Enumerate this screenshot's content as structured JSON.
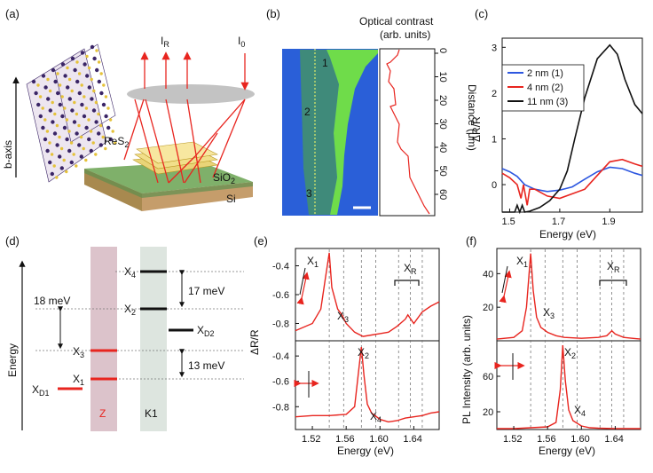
{
  "panel_labels": {
    "a": "(a)",
    "b": "(b)",
    "c": "(c)",
    "d": "(d)",
    "e": "(e)",
    "f": "(f)"
  },
  "panel_a": {
    "b_axis": "b-axis",
    "i_r_main": "I",
    "i_r_sub": "R",
    "i_0_main": "I",
    "i_0_sub": "0",
    "res2_main": "ReS",
    "res2_sub": "2",
    "sio2_main": "SiO",
    "sio2_sub": "2",
    "si": "Si",
    "colors": {
      "lens": "#c3c3c3",
      "arrow": "#e8251f",
      "sio2": "#7fb06a",
      "si": "#c59d6b",
      "atom_s": "#e5c23a",
      "atom_re": "#3a2566"
    }
  },
  "panel_b": {
    "title_line1": "Optical contrast",
    "title_line2": "(arb. units)",
    "ylabel": "Distance (μm)",
    "ticks": [
      "0",
      "10",
      "20",
      "30",
      "40",
      "50",
      "60"
    ],
    "markers": [
      "1",
      "2",
      "3"
    ],
    "colors": {
      "substrate": "#2a5fd8",
      "thin": "#3f8a7a",
      "thick": "#6fdc4a",
      "trace": "#e8251f"
    }
  },
  "chart_data": [
    {
      "id": "c",
      "type": "line",
      "xlabel": "Energy (eV)",
      "ylabel": "ΔR/R",
      "xlim": [
        1.47,
        2.03
      ],
      "ylim": [
        -0.6,
        3.2
      ],
      "xticks": [
        1.5,
        1.7,
        1.9
      ],
      "yticks": [
        0,
        1,
        2,
        3
      ],
      "legend": [
        "2 nm (1)",
        "4 nm (2)",
        "11 nm (3)"
      ],
      "series": [
        {
          "name": "2 nm (1)",
          "color": "#2d57e0",
          "x": [
            1.47,
            1.5,
            1.53,
            1.56,
            1.6,
            1.65,
            1.7,
            1.75,
            1.8,
            1.85,
            1.9,
            1.95,
            2.0,
            2.03
          ],
          "y": [
            0.35,
            0.28,
            0.18,
            0.0,
            -0.1,
            -0.15,
            -0.12,
            -0.05,
            0.12,
            0.28,
            0.38,
            0.35,
            0.25,
            0.2
          ]
        },
        {
          "name": "4 nm (2)",
          "color": "#e8251f",
          "x": [
            1.47,
            1.5,
            1.53,
            1.545,
            1.555,
            1.57,
            1.58,
            1.6,
            1.65,
            1.7,
            1.75,
            1.8,
            1.85,
            1.9,
            1.95,
            2.0,
            2.03
          ],
          "y": [
            0.25,
            0.15,
            0.0,
            -0.3,
            0.0,
            -0.45,
            -0.1,
            -0.1,
            -0.25,
            -0.3,
            -0.2,
            -0.1,
            0.2,
            0.5,
            0.55,
            0.45,
            0.4
          ]
        },
        {
          "name": "11 nm (3)",
          "color": "#111111",
          "x": [
            1.47,
            1.52,
            1.53,
            1.54,
            1.55,
            1.56,
            1.58,
            1.62,
            1.66,
            1.7,
            1.73,
            1.76,
            1.8,
            1.85,
            1.9,
            1.93,
            1.96,
            2.0,
            2.03
          ],
          "y": [
            -0.6,
            -0.6,
            -0.45,
            -0.6,
            -0.45,
            -0.6,
            -0.58,
            -0.5,
            -0.35,
            -0.1,
            0.3,
            1.0,
            1.9,
            2.75,
            3.05,
            2.85,
            2.3,
            1.75,
            1.55
          ]
        }
      ]
    },
    {
      "id": "e",
      "type": "line",
      "xlabel": "Energy (eV)",
      "ylabel": "ΔR/R",
      "xlim": [
        1.5,
        1.67
      ],
      "xticks": [
        1.52,
        1.56,
        1.6,
        1.64
      ],
      "dashed_x": [
        1.54,
        1.557,
        1.578,
        1.595,
        1.622,
        1.636,
        1.65
      ],
      "top": {
        "ylim": [
          -0.92,
          -0.28
        ],
        "yticks": [
          -0.4,
          -0.6,
          -0.8
        ],
        "x": [
          1.5,
          1.52,
          1.53,
          1.535,
          1.54,
          1.543,
          1.55,
          1.555,
          1.56,
          1.57,
          1.58,
          1.59,
          1.6,
          1.61,
          1.62,
          1.63,
          1.633,
          1.64,
          1.65,
          1.66,
          1.67
        ],
        "y": [
          -0.85,
          -0.8,
          -0.7,
          -0.5,
          -0.31,
          -0.55,
          -0.7,
          -0.74,
          -0.8,
          -0.86,
          -0.89,
          -0.88,
          -0.87,
          -0.86,
          -0.82,
          -0.77,
          -0.74,
          -0.8,
          -0.72,
          -0.68,
          -0.65
        ]
      },
      "bottom": {
        "ylim": [
          -0.98,
          -0.28
        ],
        "yticks": [
          -0.4,
          -0.6,
          -0.8
        ],
        "x": [
          1.5,
          1.52,
          1.54,
          1.56,
          1.57,
          1.575,
          1.578,
          1.581,
          1.585,
          1.59,
          1.6,
          1.61,
          1.62,
          1.63,
          1.64,
          1.65,
          1.66,
          1.67
        ],
        "y": [
          -0.88,
          -0.87,
          -0.87,
          -0.86,
          -0.8,
          -0.5,
          -0.33,
          -0.55,
          -0.78,
          -0.85,
          -0.9,
          -0.92,
          -0.91,
          -0.89,
          -0.88,
          -0.87,
          -0.85,
          -0.84
        ]
      },
      "peaks": {
        "x1": [
          "X",
          "1"
        ],
        "x3": [
          "X",
          "3"
        ],
        "x2": [
          "X",
          "2"
        ],
        "x4": [
          "X",
          "4"
        ],
        "xr": [
          "X",
          "R"
        ]
      }
    },
    {
      "id": "f",
      "type": "line",
      "xlabel": "Energy (eV)",
      "ylabel": "PL Intensity (arb. units)",
      "xlim": [
        1.5,
        1.67
      ],
      "xticks": [
        1.52,
        1.56,
        1.6,
        1.64
      ],
      "dashed_x": [
        1.54,
        1.557,
        1.578,
        1.595,
        1.622,
        1.636,
        1.65
      ],
      "top": {
        "ylim": [
          0,
          55
        ],
        "yticks": [
          40,
          20
        ],
        "x": [
          1.5,
          1.52,
          1.53,
          1.535,
          1.54,
          1.543,
          1.547,
          1.552,
          1.56,
          1.57,
          1.58,
          1.6,
          1.62,
          1.63,
          1.636,
          1.64,
          1.65,
          1.66,
          1.67
        ],
        "y": [
          1,
          2,
          6,
          20,
          52,
          30,
          14,
          8,
          5,
          3,
          2,
          1.5,
          2,
          3,
          6,
          4,
          2,
          1.5,
          1
        ]
      },
      "bottom": {
        "ylim": [
          0,
          100
        ],
        "yticks": [
          60,
          20
        ],
        "x": [
          1.5,
          1.52,
          1.54,
          1.56,
          1.57,
          1.575,
          1.578,
          1.581,
          1.585,
          1.59,
          1.6,
          1.61,
          1.62,
          1.64,
          1.67
        ],
        "y": [
          1,
          1,
          2,
          3,
          8,
          45,
          95,
          55,
          22,
          10,
          4,
          2,
          1.5,
          1,
          1
        ]
      },
      "peaks": {
        "x1": [
          "X",
          "1"
        ],
        "x3": [
          "X",
          "3"
        ],
        "x2": [
          "X",
          "2"
        ],
        "x4": [
          "X",
          "4"
        ],
        "xr": [
          "X",
          "R"
        ]
      }
    }
  ],
  "panel_d": {
    "ylabel": "Energy",
    "col_z": "Z",
    "col_k1": "K1",
    "levels": {
      "x1": [
        "X",
        "1"
      ],
      "x2": [
        "X",
        "2"
      ],
      "x3": [
        "X",
        "3"
      ],
      "x4": [
        "X",
        "4"
      ],
      "xd1": [
        "X",
        "D1"
      ],
      "xd2": [
        "X",
        "D2"
      ]
    },
    "gaps": {
      "a": "18 meV",
      "b": "17 meV",
      "c": "13 meV"
    },
    "colors": {
      "z_band": "#dcc3cb",
      "k1_band": "#dde5df",
      "red": "#e8251f"
    }
  }
}
